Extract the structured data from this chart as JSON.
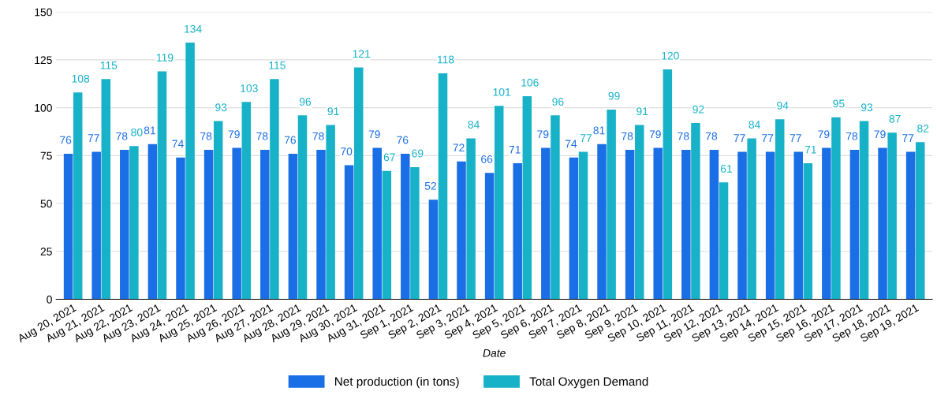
{
  "chart_data": {
    "type": "bar",
    "xlabel": "Date",
    "categories": [
      "Aug 20, 2021",
      "Aug 21, 2021",
      "Aug 22, 2021",
      "Aug 23, 2021",
      "Aug 24, 2021",
      "Aug 25, 2021",
      "Aug 26, 2021",
      "Aug 27, 2021",
      "Aug 28, 2021",
      "Aug 29, 2021",
      "Aug 30, 2021",
      "Aug 31, 2021",
      "Sep 1, 2021",
      "Sep 2, 2021",
      "Sep 3, 2021",
      "Sep 4, 2021",
      "Sep 5, 2021",
      "Sep 6, 2021",
      "Sep 7, 2021",
      "Sep 8, 2021",
      "Sep 9, 2021",
      "Sep 10, 2021",
      "Sep 11, 2021",
      "Sep 12, 2021",
      "Sep 13, 2021",
      "Sep 14, 2021",
      "Sep 15, 2021",
      "Sep 16, 2021",
      "Sep 17, 2021",
      "Sep 18, 2021",
      "Sep 19, 2021"
    ],
    "series": [
      {
        "name": "Net production (in tons)",
        "color": "#1a6ee6",
        "values": [
          76,
          77,
          78,
          81,
          74,
          78,
          79,
          78,
          76,
          78,
          70,
          79,
          76,
          52,
          72,
          66,
          71,
          79,
          74,
          81,
          78,
          79,
          78,
          78,
          77,
          77,
          77,
          79,
          78,
          79,
          77
        ]
      },
      {
        "name": "Total Oxygen Demand",
        "color": "#17b2c8",
        "values": [
          108,
          115,
          80,
          119,
          134,
          93,
          103,
          115,
          96,
          91,
          121,
          67,
          69,
          118,
          84,
          101,
          106,
          96,
          77,
          99,
          91,
          120,
          92,
          61,
          84,
          94,
          71,
          95,
          93,
          87,
          82
        ]
      }
    ],
    "ylim": [
      0,
      150
    ],
    "yticks": [
      0,
      25,
      50,
      75,
      100,
      125,
      150
    ],
    "grid": "y",
    "legend": "bottom",
    "data_labels": true
  }
}
